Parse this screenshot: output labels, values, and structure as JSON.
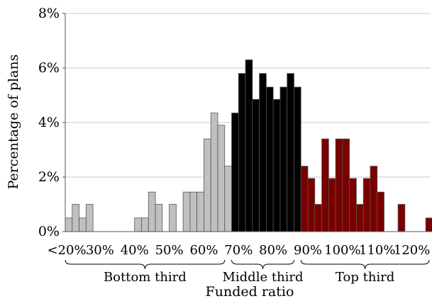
{
  "chart_data": {
    "type": "bar",
    "title": "",
    "xlabel": "Funded ratio",
    "ylabel": "Percentage of plans",
    "ylim": [
      0,
      8
    ],
    "y_ticks": [
      "0%",
      "2%",
      "4%",
      "6%",
      "8%"
    ],
    "x_tick_labels": [
      "<20%",
      "30%",
      "40%",
      "50%",
      "60%",
      "70%",
      "80%",
      "90%",
      "100%",
      "110%",
      "120%"
    ],
    "bin_width_pct": 2,
    "grid": true,
    "series": [
      {
        "name": "Bottom third",
        "color": "#c0c0c0",
        "x": [
          20,
          22,
          24,
          26,
          28,
          30,
          32,
          34,
          36,
          38,
          40,
          42,
          44,
          46,
          48,
          50,
          52,
          54,
          56,
          58,
          60,
          62,
          64,
          66
        ],
        "values": [
          0.5,
          1.0,
          0.5,
          1.0,
          0,
          0,
          0,
          0,
          0,
          0,
          0.5,
          0.5,
          1.45,
          1.0,
          0,
          1.0,
          0,
          1.45,
          1.45,
          1.45,
          3.4,
          4.35,
          3.9,
          2.4
        ]
      },
      {
        "name": "Middle third",
        "color": "#000000",
        "x": [
          68,
          70,
          72,
          74,
          76,
          78,
          80,
          82,
          84,
          86
        ],
        "values": [
          4.35,
          5.8,
          6.3,
          4.85,
          5.8,
          5.3,
          4.85,
          5.3,
          5.8,
          5.3
        ]
      },
      {
        "name": "Top third",
        "color": "#7a0000",
        "x": [
          88,
          90,
          92,
          94,
          96,
          98,
          100,
          102,
          104,
          106,
          108,
          110,
          112,
          114,
          116,
          118,
          120,
          122,
          124
        ],
        "values": [
          2.4,
          1.95,
          1.0,
          3.4,
          1.95,
          3.4,
          3.4,
          1.95,
          1.0,
          1.95,
          2.4,
          1.45,
          0,
          0,
          1.0,
          0,
          0,
          0,
          0.5
        ]
      }
    ],
    "groups": [
      {
        "label": "Bottom third",
        "from": 20,
        "to": 66
      },
      {
        "label": "Middle third",
        "from": 68,
        "to": 86
      },
      {
        "label": "Top third",
        "from": 88,
        "to": 125
      }
    ]
  }
}
